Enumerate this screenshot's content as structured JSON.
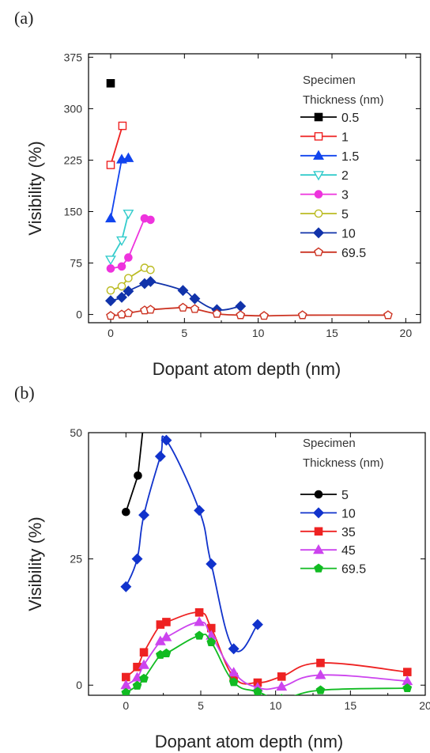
{
  "chart_data": [
    {
      "panel_label": "(a)",
      "type": "line",
      "xlabel": "Dopant atom depth (nm)",
      "ylabel": "Visibility (%)",
      "xlim": [
        -1.5,
        21
      ],
      "ylim": [
        -12,
        380
      ],
      "x_ticks": [
        0,
        5,
        10,
        15,
        20
      ],
      "y_ticks": [
        0,
        75,
        150,
        225,
        300,
        375
      ],
      "legend_title": [
        "Specimen",
        "Thickness (nm)"
      ],
      "legend_placement": "top-right",
      "series": [
        {
          "name": "0.5",
          "color": "#000000",
          "marker": "square",
          "filled": true,
          "x": [
            0
          ],
          "y": [
            337
          ]
        },
        {
          "name": "1",
          "color": "#ee2222",
          "marker": "square",
          "filled": false,
          "x": [
            0,
            0.8
          ],
          "y": [
            218,
            275
          ]
        },
        {
          "name": "1.5",
          "color": "#1144ee",
          "marker": "triangle-up",
          "filled": true,
          "x": [
            0,
            0.75,
            1.2
          ],
          "y": [
            140,
            226,
            228
          ]
        },
        {
          "name": "2",
          "color": "#33cccc",
          "marker": "triangle-down",
          "filled": false,
          "x": [
            0,
            0.75,
            1.2
          ],
          "y": [
            80,
            108,
            147
          ]
        },
        {
          "name": "3",
          "color": "#ee33dd",
          "marker": "circle",
          "filled": true,
          "x": [
            0,
            0.75,
            1.2,
            2.3,
            2.7
          ],
          "y": [
            67,
            70,
            83,
            140,
            138
          ]
        },
        {
          "name": "5",
          "color": "#bbbb22",
          "marker": "circle",
          "filled": false,
          "x": [
            0,
            0.75,
            1.2,
            2.3,
            2.7
          ],
          "y": [
            35,
            41,
            53,
            68,
            65
          ]
        },
        {
          "name": "10",
          "color": "#1133aa",
          "marker": "diamond",
          "filled": true,
          "x": [
            0,
            0.75,
            1.2,
            2.3,
            2.7,
            4.9,
            5.7,
            7.2,
            8.8
          ],
          "y": [
            20,
            25,
            34,
            45,
            48,
            35,
            23,
            7,
            12
          ]
        },
        {
          "name": "69.5",
          "color": "#cc3322",
          "marker": "pentagon",
          "filled": false,
          "x": [
            0,
            0.75,
            1.2,
            2.3,
            2.7,
            4.9,
            5.7,
            7.2,
            8.8,
            10.4,
            13,
            18.8
          ],
          "y": [
            -2,
            0,
            2,
            6,
            7,
            10,
            8,
            1,
            -1,
            -2,
            -1,
            -1
          ]
        }
      ]
    },
    {
      "panel_label": "(b)",
      "type": "line",
      "xlabel": "Dopant atom depth (nm)",
      "ylabel": "Visibility (%)",
      "xlim": [
        -2.5,
        20
      ],
      "ylim": [
        -2,
        50
      ],
      "x_ticks": [
        0,
        5,
        10,
        15,
        20
      ],
      "y_ticks": [
        0,
        25,
        50
      ],
      "legend_title": [
        "Specimen",
        "Thickness (nm)"
      ],
      "legend_placement": "top-right",
      "series": [
        {
          "name": "5",
          "color": "#000000",
          "marker": "circle",
          "filled": true,
          "x": [
            0,
            0.8
          ],
          "y": [
            34.3,
            41.5
          ]
        },
        {
          "name": "10",
          "color": "#1133cc",
          "marker": "diamond",
          "filled": true,
          "x": [
            0,
            0.75,
            1.2,
            2.3,
            2.7,
            4.9,
            5.7,
            7.2,
            8.8
          ],
          "y": [
            19.5,
            25,
            33.7,
            45.3,
            48.5,
            34.6,
            24,
            7.2,
            12
          ]
        },
        {
          "name": "35",
          "color": "#ee2222",
          "marker": "square",
          "filled": true,
          "x": [
            0,
            0.75,
            1.2,
            2.3,
            2.7,
            4.9,
            5.7,
            7.2,
            8.8,
            10.4,
            13,
            18.8
          ],
          "y": [
            1.6,
            3.6,
            6.5,
            12,
            12.5,
            14.4,
            11.3,
            1.6,
            0.5,
            1.7,
            4.4,
            2.6
          ]
        },
        {
          "name": "45",
          "color": "#cc44ee",
          "marker": "triangle-up",
          "filled": true,
          "x": [
            0,
            0.75,
            1.2,
            2.3,
            2.7,
            4.9,
            5.7,
            7.2,
            8.8,
            10.4,
            13,
            18.8
          ],
          "y": [
            0,
            1.5,
            4,
            8.7,
            9.5,
            12.5,
            9.8,
            2.5,
            -0.5,
            -0.3,
            2,
            0.8
          ]
        },
        {
          "name": "69.5",
          "color": "#11bb22",
          "marker": "pentagon",
          "filled": true,
          "x": [
            0,
            0.75,
            1.2,
            2.3,
            2.7,
            4.9,
            5.7,
            7.2,
            8.8,
            10.4,
            13,
            18.8
          ],
          "y": [
            -1.5,
            -0.1,
            1.3,
            6,
            6.3,
            9.8,
            8.5,
            0.6,
            -1.3,
            -2.7,
            -1,
            -0.6
          ]
        }
      ]
    }
  ]
}
